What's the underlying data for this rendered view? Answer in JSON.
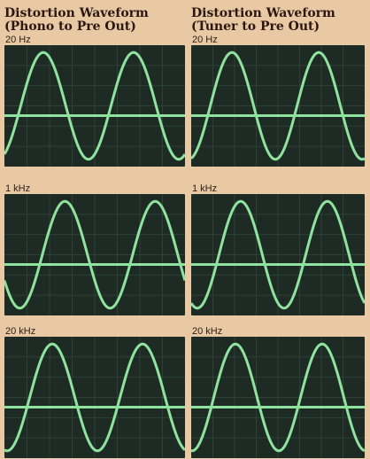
{
  "columns": [
    {
      "title_line1": "Distortion Waveform",
      "title_line2": "(Phono to Pre Out)",
      "panels": [
        {
          "freq": "20 Hz"
        },
        {
          "freq": "1 kHz"
        },
        {
          "freq": "20 kHz"
        }
      ]
    },
    {
      "title_line1": "Distortion Waveform",
      "title_line2": "(Tuner to Pre Out)",
      "panels": [
        {
          "freq": "20 Hz"
        },
        {
          "freq": "1 kHz"
        },
        {
          "freq": "20 kHz"
        }
      ]
    }
  ],
  "colors": {
    "background": "#e8c9a3",
    "scope_screen": "#1d2b24",
    "trace": "#8fe39f",
    "grid": "#2f4036"
  }
}
